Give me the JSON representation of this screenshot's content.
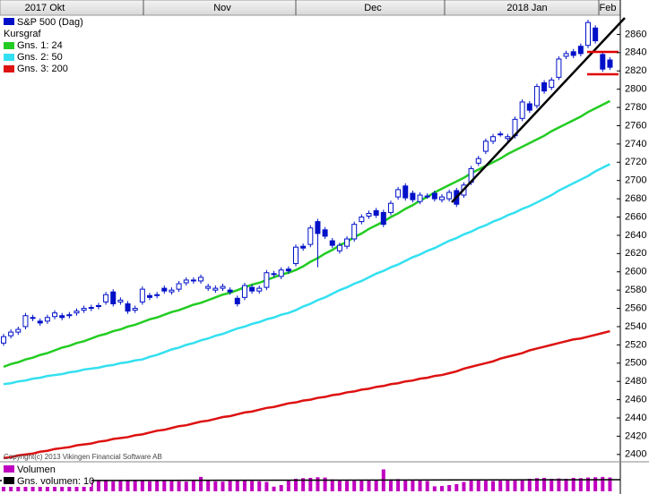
{
  "chart_data": {
    "type": "candlestick",
    "title": "S&P 500 (Dag)",
    "subtitle": "Kursgraf",
    "periods": [
      "2017 Okt",
      "Nov",
      "Dec",
      "2018 Jan",
      "Feb"
    ],
    "categories": [
      null,
      null,
      null,
      null,
      null,
      null,
      null,
      null,
      null,
      null,
      null,
      null,
      null,
      null,
      null,
      null,
      null,
      null,
      null,
      null,
      null,
      null,
      null,
      null,
      null,
      null,
      null,
      null,
      null,
      null,
      null,
      null,
      null,
      null,
      null,
      null,
      null,
      null,
      null,
      null,
      null,
      null,
      null,
      null,
      null,
      null,
      null,
      null,
      null,
      null,
      null,
      null,
      null,
      null,
      null,
      null,
      null,
      null,
      null,
      null,
      null,
      null,
      null,
      null,
      null,
      null,
      null,
      null,
      null,
      null,
      null,
      null,
      null,
      null,
      null,
      null,
      null,
      null,
      null,
      null,
      null,
      null,
      null,
      null
    ],
    "open": [
      2522,
      2530,
      2534,
      2540,
      2550,
      2546,
      2546,
      2551,
      2552,
      2552,
      2555,
      2558,
      2560,
      2563,
      2567,
      2578,
      2567,
      2565,
      2558,
      2567,
      2574,
      2574,
      2582,
      2578,
      2581,
      2588,
      2591,
      2590,
      2582,
      2580,
      2582,
      2580,
      2571,
      2572,
      2583,
      2579,
      2583,
      2598,
      2595,
      2603,
      2609,
      2628,
      2630,
      2655,
      2646,
      2634,
      2623,
      2628,
      2636,
      2655,
      2661,
      2667,
      2665,
      2665,
      2682,
      2694,
      2686,
      2677,
      2683,
      2686,
      2679,
      2680,
      2689,
      2684,
      2698,
      2719,
      2732,
      2743,
      2751,
      2746,
      2749,
      2768,
      2784,
      2782,
      2807,
      2802,
      2813,
      2836,
      2841,
      2847,
      2848,
      2867,
      2838,
      2832
    ],
    "high": [
      2532,
      2537,
      2540,
      2555,
      2553,
      2549,
      2553,
      2558,
      2555,
      2556,
      2560,
      2563,
      2564,
      2566,
      2578,
      2581,
      2572,
      2568,
      2563,
      2584,
      2577,
      2578,
      2585,
      2583,
      2590,
      2594,
      2594,
      2597,
      2587,
      2585,
      2587,
      2583,
      2574,
      2588,
      2586,
      2585,
      2602,
      2601,
      2605,
      2606,
      2630,
      2631,
      2651,
      2658,
      2649,
      2637,
      2632,
      2639,
      2655,
      2663,
      2667,
      2670,
      2668,
      2678,
      2693,
      2697,
      2689,
      2687,
      2686,
      2689,
      2685,
      2690,
      2692,
      2698,
      2716,
      2727,
      2746,
      2751,
      2754,
      2751,
      2770,
      2789,
      2787,
      2806,
      2810,
      2813,
      2836,
      2842,
      2844,
      2850,
      2876,
      2870,
      2841,
      2835
    ],
    "low": [
      2519,
      2527,
      2531,
      2537,
      2546,
      2541,
      2543,
      2548,
      2547,
      2549,
      2552,
      2555,
      2557,
      2559,
      2564,
      2562,
      2564,
      2554,
      2555,
      2564,
      2569,
      2571,
      2576,
      2575,
      2578,
      2585,
      2587,
      2587,
      2579,
      2577,
      2579,
      2575,
      2562,
      2569,
      2576,
      2576,
      2580,
      2594,
      2592,
      2598,
      2606,
      2623,
      2627,
      2605,
      2636,
      2626,
      2620,
      2625,
      2633,
      2652,
      2658,
      2659,
      2649,
      2662,
      2679,
      2678,
      2676,
      2674,
      2680,
      2677,
      2676,
      2677,
      2671,
      2681,
      2695,
      2716,
      2729,
      2740,
      2748,
      2743,
      2746,
      2765,
      2774,
      2779,
      2795,
      2799,
      2810,
      2833,
      2834,
      2836,
      2845,
      2850,
      2819,
      2821
    ],
    "close": [
      2529,
      2534,
      2537,
      2552,
      2549,
      2544,
      2550,
      2555,
      2550,
      2553,
      2557,
      2560,
      2561,
      2562,
      2575,
      2565,
      2569,
      2557,
      2560,
      2581,
      2572,
      2575,
      2579,
      2580,
      2587,
      2591,
      2590,
      2594,
      2584,
      2582,
      2584,
      2578,
      2565,
      2585,
      2579,
      2582,
      2599,
      2597,
      2602,
      2601,
      2627,
      2626,
      2648,
      2642,
      2639,
      2629,
      2629,
      2636,
      2652,
      2660,
      2664,
      2662,
      2652,
      2675,
      2690,
      2681,
      2679,
      2684,
      2683,
      2680,
      2682,
      2687,
      2674,
      2695,
      2713,
      2724,
      2743,
      2748,
      2751,
      2748,
      2767,
      2786,
      2777,
      2803,
      2798,
      2810,
      2833,
      2839,
      2837,
      2839,
      2873,
      2853,
      2822,
      2824
    ],
    "up_color": "#ffffff",
    "down_color": "#0010c8",
    "series": [
      {
        "name": "Gns. 1: 24",
        "color": "#22cc22",
        "values": [
          2496,
          2499,
          2501,
          2504,
          2506,
          2509,
          2511,
          2514,
          2517,
          2519,
          2522,
          2524,
          2527,
          2530,
          2532,
          2535,
          2537,
          2540,
          2542,
          2545,
          2548,
          2550,
          2553,
          2556,
          2558,
          2561,
          2564,
          2566,
          2569,
          2572,
          2575,
          2577,
          2580,
          2583,
          2586,
          2588,
          2591,
          2594,
          2597,
          2599,
          2602,
          2606,
          2611,
          2615,
          2620,
          2624,
          2629,
          2633,
          2638,
          2642,
          2647,
          2651,
          2655,
          2660,
          2664,
          2669,
          2673,
          2678,
          2682,
          2687,
          2691,
          2695,
          2699,
          2703,
          2708,
          2712,
          2716,
          2720,
          2724,
          2729,
          2733,
          2737,
          2741,
          2745,
          2749,
          2754,
          2758,
          2762,
          2766,
          2770,
          2775,
          2779,
          2783,
          2787
        ]
      },
      {
        "name": "Gns. 2: 50",
        "color": "#33e0f0",
        "values": [
          2477,
          2478,
          2480,
          2481,
          2483,
          2484,
          2486,
          2487,
          2488,
          2490,
          2491,
          2493,
          2494,
          2495,
          2497,
          2498,
          2500,
          2501,
          2503,
          2504,
          2507,
          2509,
          2512,
          2515,
          2517,
          2520,
          2522,
          2525,
          2527,
          2530,
          2532,
          2535,
          2538,
          2540,
          2543,
          2545,
          2548,
          2550,
          2553,
          2555,
          2558,
          2562,
          2565,
          2569,
          2572,
          2576,
          2580,
          2583,
          2587,
          2590,
          2594,
          2598,
          2601,
          2605,
          2608,
          2612,
          2616,
          2619,
          2623,
          2626,
          2630,
          2634,
          2637,
          2641,
          2644,
          2648,
          2651,
          2655,
          2658,
          2662,
          2665,
          2669,
          2672,
          2676,
          2680,
          2684,
          2689,
          2693,
          2697,
          2701,
          2705,
          2710,
          2714,
          2718
        ]
      },
      {
        "name": "Gns. 3: 200",
        "color": "#dd1111",
        "values": [
          2396,
          2397,
          2399,
          2400,
          2401,
          2403,
          2404,
          2406,
          2407,
          2408,
          2410,
          2411,
          2412,
          2414,
          2415,
          2417,
          2418,
          2419,
          2421,
          2422,
          2424,
          2426,
          2427,
          2429,
          2431,
          2432,
          2434,
          2436,
          2437,
          2439,
          2441,
          2442,
          2444,
          2446,
          2447,
          2449,
          2451,
          2452,
          2454,
          2456,
          2457,
          2459,
          2460,
          2462,
          2463,
          2465,
          2466,
          2468,
          2469,
          2471,
          2472,
          2474,
          2475,
          2477,
          2478,
          2480,
          2481,
          2483,
          2484,
          2486,
          2487,
          2489,
          2491,
          2494,
          2496,
          2498,
          2500,
          2502,
          2505,
          2507,
          2509,
          2511,
          2514,
          2516,
          2518,
          2520,
          2522,
          2524,
          2526,
          2527,
          2529,
          2531,
          2533,
          2535
        ]
      }
    ],
    "ylim": [
      2392,
      2881
    ],
    "yticks": [
      2400,
      2420,
      2440,
      2460,
      2480,
      2500,
      2520,
      2540,
      2560,
      2580,
      2600,
      2620,
      2640,
      2660,
      2680,
      2700,
      2720,
      2740,
      2760,
      2780,
      2800,
      2820,
      2840,
      2860
    ],
    "volume": {
      "name": "Volumen",
      "color": "#c000c0",
      "ylim": [
        0,
        8
      ],
      "values": [
        3.0,
        3.1,
        3.2,
        3.0,
        2.9,
        2.8,
        3.0,
        3.1,
        3.0,
        2.9,
        3.2,
        3.1,
        3.0,
        3.3,
        3.6,
        3.2,
        3.3,
        3.4,
        3.5,
        3.6,
        3.2,
        3.4,
        3.5,
        3.4,
        3.2,
        3.1,
        3.3,
        4.6,
        3.5,
        3.2,
        3.1,
        3.4,
        3.6,
        3.5,
        3.3,
        3.2,
        3.0,
        1.5,
        2.0,
        3.4,
        4.0,
        4.2,
        4.3,
        4.5,
        4.4,
        3.8,
        3.5,
        3.3,
        3.4,
        3.6,
        3.6,
        3.5,
        7.0,
        3.8,
        3.9,
        3.7,
        3.6,
        3.5,
        3.3,
        1.6,
        1.7,
        2.0,
        2.3,
        3.0,
        3.6,
        3.7,
        3.4,
        3.3,
        3.5,
        3.7,
        3.5,
        3.6,
        4.0,
        4.2,
        4.3,
        4.0,
        4.1,
        4.0,
        4.3,
        4.2,
        4.4,
        4.5,
        4.6,
        4.4
      ]
    },
    "volume_average_name": "Gns. volumen: 10",
    "copyright": "Copyright(c) 2013 Vikingen Financial Software AB"
  }
}
